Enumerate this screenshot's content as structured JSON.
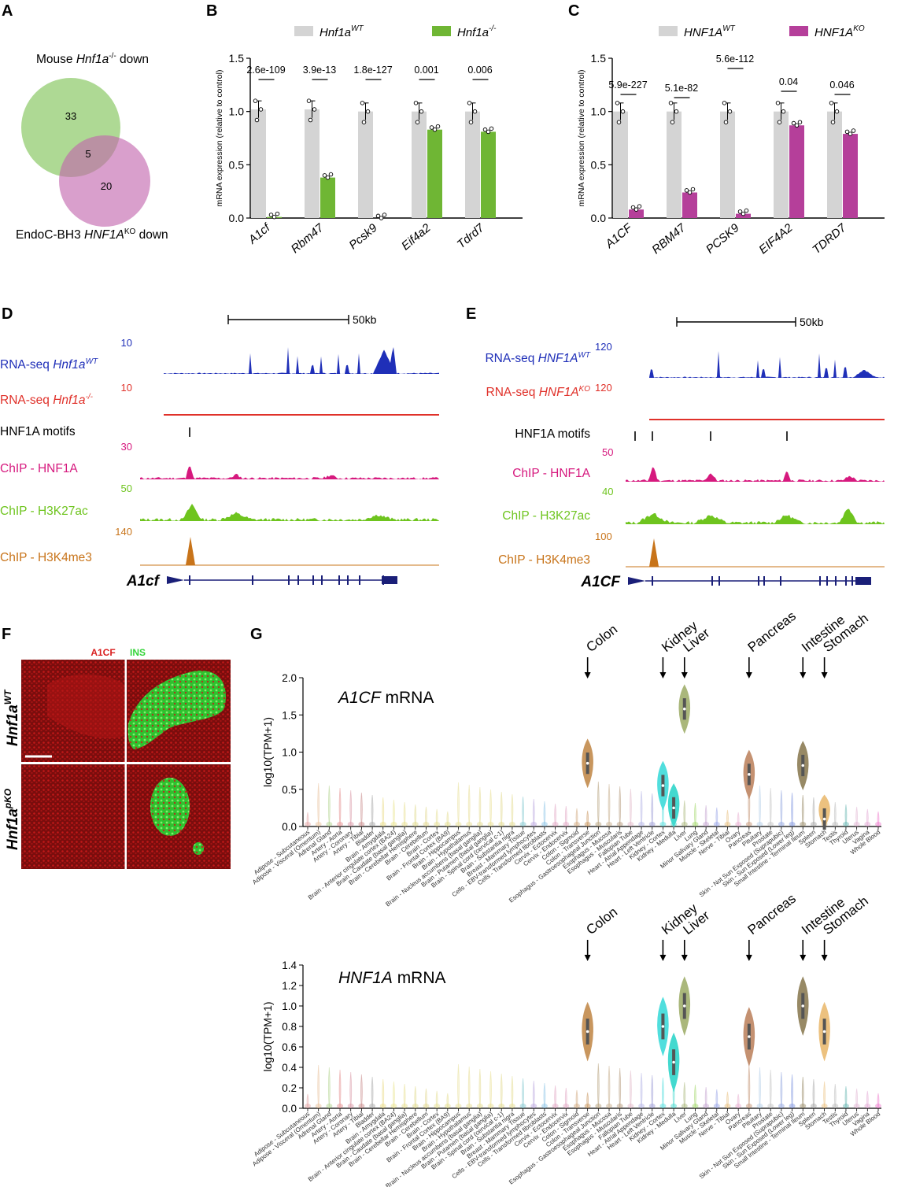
{
  "panel_letters": {
    "A": "A",
    "B": "B",
    "C": "C",
    "D": "D",
    "E": "E",
    "F": "F",
    "G": "G"
  },
  "colors": {
    "wt_grey": "#d4d4d4",
    "mouse_ko_green": "#6fb634",
    "human_ko_magenta": "#b53f9a",
    "rnaseq_blue": "#1f2fb8",
    "rnaseq_red": "#e0312a",
    "chip_hnf1a": "#d6197e",
    "chip_h3k27ac": "#6ec41e",
    "chip_h3k4me3": "#c8741a",
    "gene_navy": "#1a1f78",
    "a1cf_red": "#d91f1f",
    "ins_green": "#36d43a"
  },
  "venn": {
    "top_label_prefix": "Mouse ",
    "top_label_gene": "Hnf1a",
    "top_label_sup": "-/-",
    "top_label_suffix": " down",
    "bottom_label_prefix": "EndoC-BH3 ",
    "bottom_label_gene": "HNF1A",
    "bottom_label_sup": "KO",
    "bottom_label_suffix": " down",
    "only_top": "33",
    "overlap": "5",
    "only_bottom": "20"
  },
  "chart_data": [
    {
      "type": "bar",
      "panel": "B",
      "legend": [
        "Hnf1a^WT",
        "Hnf1a^-/-"
      ],
      "legend_wt_base": "Hnf1a",
      "legend_wt_sup": "WT",
      "legend_ko_base": "Hnf1a",
      "legend_ko_sup": "-/-",
      "ylabel": "mRNA expression (relative to control)",
      "ylim": [
        0,
        1.5
      ],
      "yticks": [
        "0.0",
        "0.5",
        "1.0",
        "1.5"
      ],
      "categories": [
        "A1cf",
        "Rbm47",
        "Pcsk9",
        "Eif4a2",
        "Tdrd7"
      ],
      "series": [
        {
          "name": "Hnf1a^WT",
          "values": [
            1.02,
            1.02,
            1.0,
            1.0,
            1.0
          ]
        },
        {
          "name": "Hnf1a^-/-",
          "values": [
            0.01,
            0.38,
            0.0,
            0.83,
            0.81
          ]
        }
      ],
      "pvalues": [
        "2.6e-109",
        "3.9e-13",
        "1.8e-127",
        "0.001",
        "0.006"
      ]
    },
    {
      "type": "bar",
      "panel": "C",
      "legend": [
        "HNF1A^WT",
        "HNF1A^KO"
      ],
      "legend_wt_base": "HNF1A",
      "legend_wt_sup": "WT",
      "legend_ko_base": "HNF1A",
      "legend_ko_sup": "KO",
      "ylabel": "mRNA expression (relative to control)",
      "ylim": [
        0,
        1.5
      ],
      "yticks": [
        "0.0",
        "0.5",
        "1.0",
        "1.5"
      ],
      "categories": [
        "A1CF",
        "RBM47",
        "PCSK9",
        "EIF4A2",
        "TDRD7"
      ],
      "series": [
        {
          "name": "HNF1A^WT",
          "values": [
            1.0,
            1.0,
            1.0,
            1.0,
            1.0
          ]
        },
        {
          "name": "HNF1A^KO",
          "values": [
            0.08,
            0.24,
            0.04,
            0.87,
            0.79
          ]
        }
      ],
      "pvalues": [
        "5.9e-227",
        "5.1e-82",
        "5.6e-112",
        "0.04",
        "0.046"
      ]
    },
    {
      "type": "violin",
      "panel": "G-top",
      "title_gene": "A1CF",
      "title_suffix": " mRNA",
      "ylabel": "log10(TPM+1)",
      "ylim": [
        0,
        2.0
      ],
      "yticks": [
        "0.0",
        "0.5",
        "1.0",
        "1.5",
        "2.0"
      ],
      "highlighted_medians": {
        "Colon - Transverse": 0.85,
        "Kidney - Cortex": 0.55,
        "Kidney - Medulla": 0.25,
        "Liver": 1.58,
        "Pancreas": 0.7,
        "Small Intestine - Terminal Ileum": 0.82,
        "Stomach": 0.1
      }
    },
    {
      "type": "violin",
      "panel": "G-bottom",
      "title_gene": "HNF1A",
      "title_suffix": " mRNA",
      "ylabel": "log10(TPM+1)",
      "ylim": [
        0,
        1.4
      ],
      "yticks": [
        "0.0",
        "0.2",
        "0.4",
        "0.6",
        "0.8",
        "1.0",
        "1.2",
        "1.4"
      ],
      "highlighted_medians": {
        "Colon - Transverse": 0.75,
        "Kidney - Cortex": 0.8,
        "Kidney - Medulla": 0.45,
        "Liver": 1.0,
        "Pancreas": 0.7,
        "Small Intestine - Terminal Ileum": 1.0,
        "Stomach": 0.75
      }
    }
  ],
  "tracks_d": {
    "scale_label": "50kb",
    "rows": [
      {
        "prefix": "RNA-seq ",
        "gene": "Hnf1a",
        "sup": "WT",
        "scale": "10"
      },
      {
        "prefix": "RNA-seq ",
        "gene": "Hnf1a",
        "sup": "-/-",
        "scale": "10"
      },
      {
        "label": "HNF1A motifs"
      },
      {
        "label": "ChIP - HNF1A",
        "scale": "30"
      },
      {
        "label": "ChIP - H3K27ac",
        "scale": "50"
      },
      {
        "label": "ChIP - H3K4me3",
        "scale": "140"
      }
    ],
    "gene_label": "A1cf"
  },
  "tracks_e": {
    "scale_label": "50kb",
    "rows": [
      {
        "prefix": "RNA-seq ",
        "gene": "HNF1A",
        "sup": "WT",
        "scale": "120"
      },
      {
        "prefix": "RNA-seq ",
        "gene": "HNF1A",
        "sup": "KO",
        "scale": "120"
      },
      {
        "label": "HNF1A motifs"
      },
      {
        "label": "ChIP - HNF1A",
        "scale": "50"
      },
      {
        "label": "ChIP - H3K27ac",
        "scale": "40"
      },
      {
        "label": "ChIP - H3K4me3",
        "scale": "100"
      }
    ],
    "gene_label": "A1CF"
  },
  "panel_f": {
    "stain_a1cf": "A1CF",
    "stain_ins": "INS",
    "row1_base": "Hnf1a",
    "row1_sup": "WT",
    "row2_base": "Hnf1a",
    "row2_sup": "pKO"
  },
  "panel_g": {
    "arrows": [
      "Colon",
      "Kidney",
      "Liver",
      "Pancreas",
      "Intestine",
      "Stomach"
    ],
    "tissues": [
      "Adipose - Subcutaneous",
      "Adipose - Visceral (Omentum)",
      "Adrenal Gland",
      "Artery - Aorta",
      "Artery - Coronary",
      "Artery - Tibial",
      "Bladder",
      "Brain - Amygdala",
      "Brain - Anterior cingulate cortex (BA24)",
      "Brain - Caudate (basal ganglia)",
      "Brain - Cerebellar Hemisphere",
      "Brain - Cerebellum",
      "Brain - Cortex",
      "Brain - Frontal Cortex (BA9)",
      "Brain - Hippocampus",
      "Brain - Hypothalamus",
      "Brain - Nucleus accumbens (basal ganglia)",
      "Brain - Putamen (basal ganglia)",
      "Brain - Spinal cord (cervical c-1)",
      "Brain - Substantia nigra",
      "Breast - Mammary Tissue",
      "Cells - EBV-transformed lymphocytes",
      "Cells - Transformed fibroblasts",
      "Cervix - Ectocervix",
      "Cervix - Endocervix",
      "Colon - Sigmoid",
      "Colon - Transverse",
      "Esophagus - Gastroesophageal Junction",
      "Esophagus - Mucosa",
      "Esophagus - Muscularis",
      "Fallopian Tube",
      "Heart - Atrial Appendage",
      "Heart - Left Ventricle",
      "Kidney - Cortex",
      "Kidney - Medulla",
      "Liver",
      "Lung",
      "Minor Salivary Gland",
      "Muscle - Skeletal",
      "Nerve - Tibial",
      "Ovary",
      "Pancreas",
      "Pituitary",
      "Prostate",
      "Skin - Not Sun Exposed (Suprapubic)",
      "Skin - Sun Exposed (Lower leg)",
      "Small Intestine - Terminal Ileum",
      "Spleen",
      "Stomach",
      "Testis",
      "Thyroid",
      "Uterus",
      "Vagina",
      "Whole Blood"
    ]
  }
}
